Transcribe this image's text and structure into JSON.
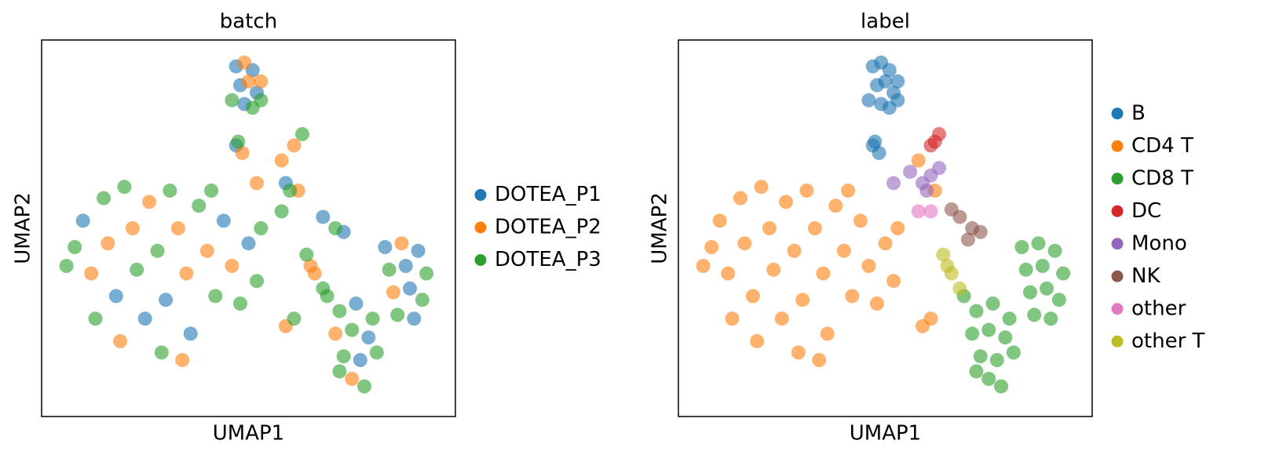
{
  "chart_data": [
    {
      "type": "scatter",
      "title": "batch",
      "x_label": "UMAP1",
      "y_label": "UMAP2",
      "xlim": [
        0,
        10
      ],
      "ylim": [
        0,
        10
      ],
      "legend": "right",
      "series": [
        {
          "name": "DOTEA_P1",
          "color": "#1f77b4",
          "x": [
            4.7,
            5.1,
            4.8,
            5.2,
            4.9,
            4.7,
            1.0,
            1.8,
            2.5,
            3.0,
            3.6,
            4.4,
            5.0,
            8.3,
            9.1,
            8.8,
            8.9,
            9.0,
            7.6,
            7.9,
            7.7,
            6.8,
            7.3,
            5.9
          ],
          "values": [
            9.3,
            9.2,
            8.8,
            8.6,
            8.3,
            7.2,
            5.2,
            3.2,
            2.6,
            3.1,
            2.2,
            5.2,
            4.6,
            4.5,
            4.4,
            4.0,
            3.4,
            2.6,
            3.0,
            2.1,
            1.5,
            5.3,
            4.9,
            6.2
          ]
        },
        {
          "name": "DOTEA_P2",
          "color": "#ff7f0e",
          "x": [
            4.9,
            5.3,
            5.0,
            4.85,
            1.2,
            1.6,
            2.2,
            2.6,
            3.3,
            3.5,
            4.0,
            4.6,
            1.9,
            3.4,
            5.9,
            5.8,
            6.2,
            6.1,
            6.6,
            6.5,
            8.7,
            8.5,
            7.1,
            7.5,
            5.2
          ],
          "values": [
            9.4,
            8.9,
            8.9,
            7.0,
            3.8,
            4.6,
            5.0,
            5.7,
            5.0,
            3.8,
            4.4,
            4.0,
            2.0,
            1.5,
            2.4,
            6.8,
            6.0,
            7.2,
            3.8,
            4.0,
            4.6,
            3.3,
            2.2,
            1.0,
            6.2
          ]
        },
        {
          "name": "DOTEA_P3",
          "color": "#2ca02c",
          "x": [
            4.6,
            5.1,
            5.3,
            4.75,
            0.8,
            1.5,
            2.0,
            2.3,
            2.8,
            3.1,
            3.8,
            4.2,
            4.8,
            5.2,
            2.9,
            1.3,
            4.1,
            0.6,
            5.3,
            6.1,
            8.4,
            9.3,
            9.2,
            8.6,
            7.2,
            7.5,
            7.3,
            8.1,
            7.8,
            7.2,
            6.9,
            8.0,
            6.3,
            6.0,
            7.1,
            5.8,
            6.4,
            6.8
          ],
          "values": [
            8.4,
            8.2,
            8.4,
            7.3,
            4.5,
            5.8,
            6.1,
            3.9,
            4.4,
            6.0,
            5.6,
            3.2,
            3.0,
            3.6,
            1.7,
            2.6,
            6.0,
            4.0,
            5.0,
            2.6,
            3.9,
            3.8,
            3.1,
            2.7,
            2.8,
            2.3,
            1.6,
            1.7,
            0.8,
            1.2,
            3.2,
            2.6,
            7.5,
            6.0,
            5.0,
            5.45,
            4.3,
            3.4
          ]
        }
      ]
    },
    {
      "type": "scatter",
      "title": "label",
      "x_label": "UMAP1",
      "y_label": "UMAP2",
      "xlim": [
        0,
        10
      ],
      "ylim": [
        0,
        10
      ],
      "legend": "right",
      "series": [
        {
          "name": "B",
          "color": "#1f77b4",
          "x": [
            4.7,
            4.9,
            5.1,
            5.3,
            4.8,
            5.0,
            5.2,
            4.6,
            4.9,
            5.1,
            5.3,
            4.7,
            4.85,
            4.75
          ],
          "values": [
            9.3,
            9.4,
            9.2,
            8.9,
            8.8,
            8.9,
            8.6,
            8.4,
            8.3,
            8.2,
            8.4,
            7.2,
            7.0,
            7.3
          ]
        },
        {
          "name": "CD4 T",
          "color": "#ff7f0e",
          "x": [
            0.8,
            1.0,
            1.2,
            1.5,
            1.6,
            1.8,
            2.0,
            2.2,
            2.3,
            2.5,
            2.6,
            2.8,
            3.0,
            3.1,
            3.3,
            3.5,
            3.6,
            3.8,
            4.0,
            4.2,
            4.4,
            4.6,
            4.8,
            5.0,
            5.2,
            1.9,
            2.9,
            3.4,
            1.3,
            4.1,
            0.6,
            5.3,
            5.9,
            6.1,
            5.8,
            6.2
          ],
          "values": [
            4.5,
            5.2,
            3.8,
            5.8,
            4.6,
            3.2,
            6.1,
            5.0,
            3.9,
            2.6,
            5.7,
            4.4,
            3.1,
            6.0,
            5.0,
            3.8,
            2.2,
            5.6,
            4.4,
            3.2,
            5.2,
            4.0,
            3.0,
            4.6,
            3.6,
            2.0,
            1.7,
            1.5,
            2.6,
            6.0,
            4.0,
            5.0,
            2.4,
            2.6,
            6.8,
            6.0
          ]
        },
        {
          "name": "CD8 T",
          "color": "#2ca02c",
          "x": [
            8.3,
            8.7,
            9.1,
            8.4,
            8.8,
            9.3,
            8.5,
            8.9,
            9.2,
            8.6,
            9.0,
            7.2,
            7.6,
            7.1,
            7.5,
            7.9,
            7.3,
            7.7,
            8.1,
            7.5,
            7.8,
            7.2,
            6.9,
            8.0
          ],
          "values": [
            4.5,
            4.6,
            4.4,
            3.9,
            4.0,
            3.8,
            3.3,
            3.4,
            3.1,
            2.7,
            2.6,
            2.8,
            3.0,
            2.2,
            2.3,
            2.1,
            1.6,
            1.5,
            1.7,
            1.0,
            0.8,
            1.2,
            3.2,
            2.6
          ]
        },
        {
          "name": "DC",
          "color": "#d62728",
          "x": [
            6.1,
            6.3,
            6.2
          ],
          "values": [
            7.2,
            7.5,
            7.3
          ]
        },
        {
          "name": "Mono",
          "color": "#9467bd",
          "x": [
            5.9,
            6.1,
            6.0,
            6.3,
            5.2,
            5.6
          ],
          "values": [
            6.2,
            6.4,
            6.0,
            6.6,
            6.2,
            6.5
          ]
        },
        {
          "name": "NK",
          "color": "#8c564b",
          "x": [
            6.8,
            7.1,
            7.3,
            7.0,
            6.6
          ],
          "values": [
            5.3,
            5.0,
            4.9,
            4.7,
            5.5
          ]
        },
        {
          "name": "other",
          "color": "#e377c2",
          "x": [
            5.8,
            6.1
          ],
          "values": [
            5.45,
            5.45
          ]
        },
        {
          "name": "other T",
          "color": "#bcbd22",
          "x": [
            6.4,
            6.6,
            6.8,
            6.5
          ],
          "values": [
            4.3,
            3.8,
            3.4,
            4.0
          ]
        }
      ]
    }
  ]
}
